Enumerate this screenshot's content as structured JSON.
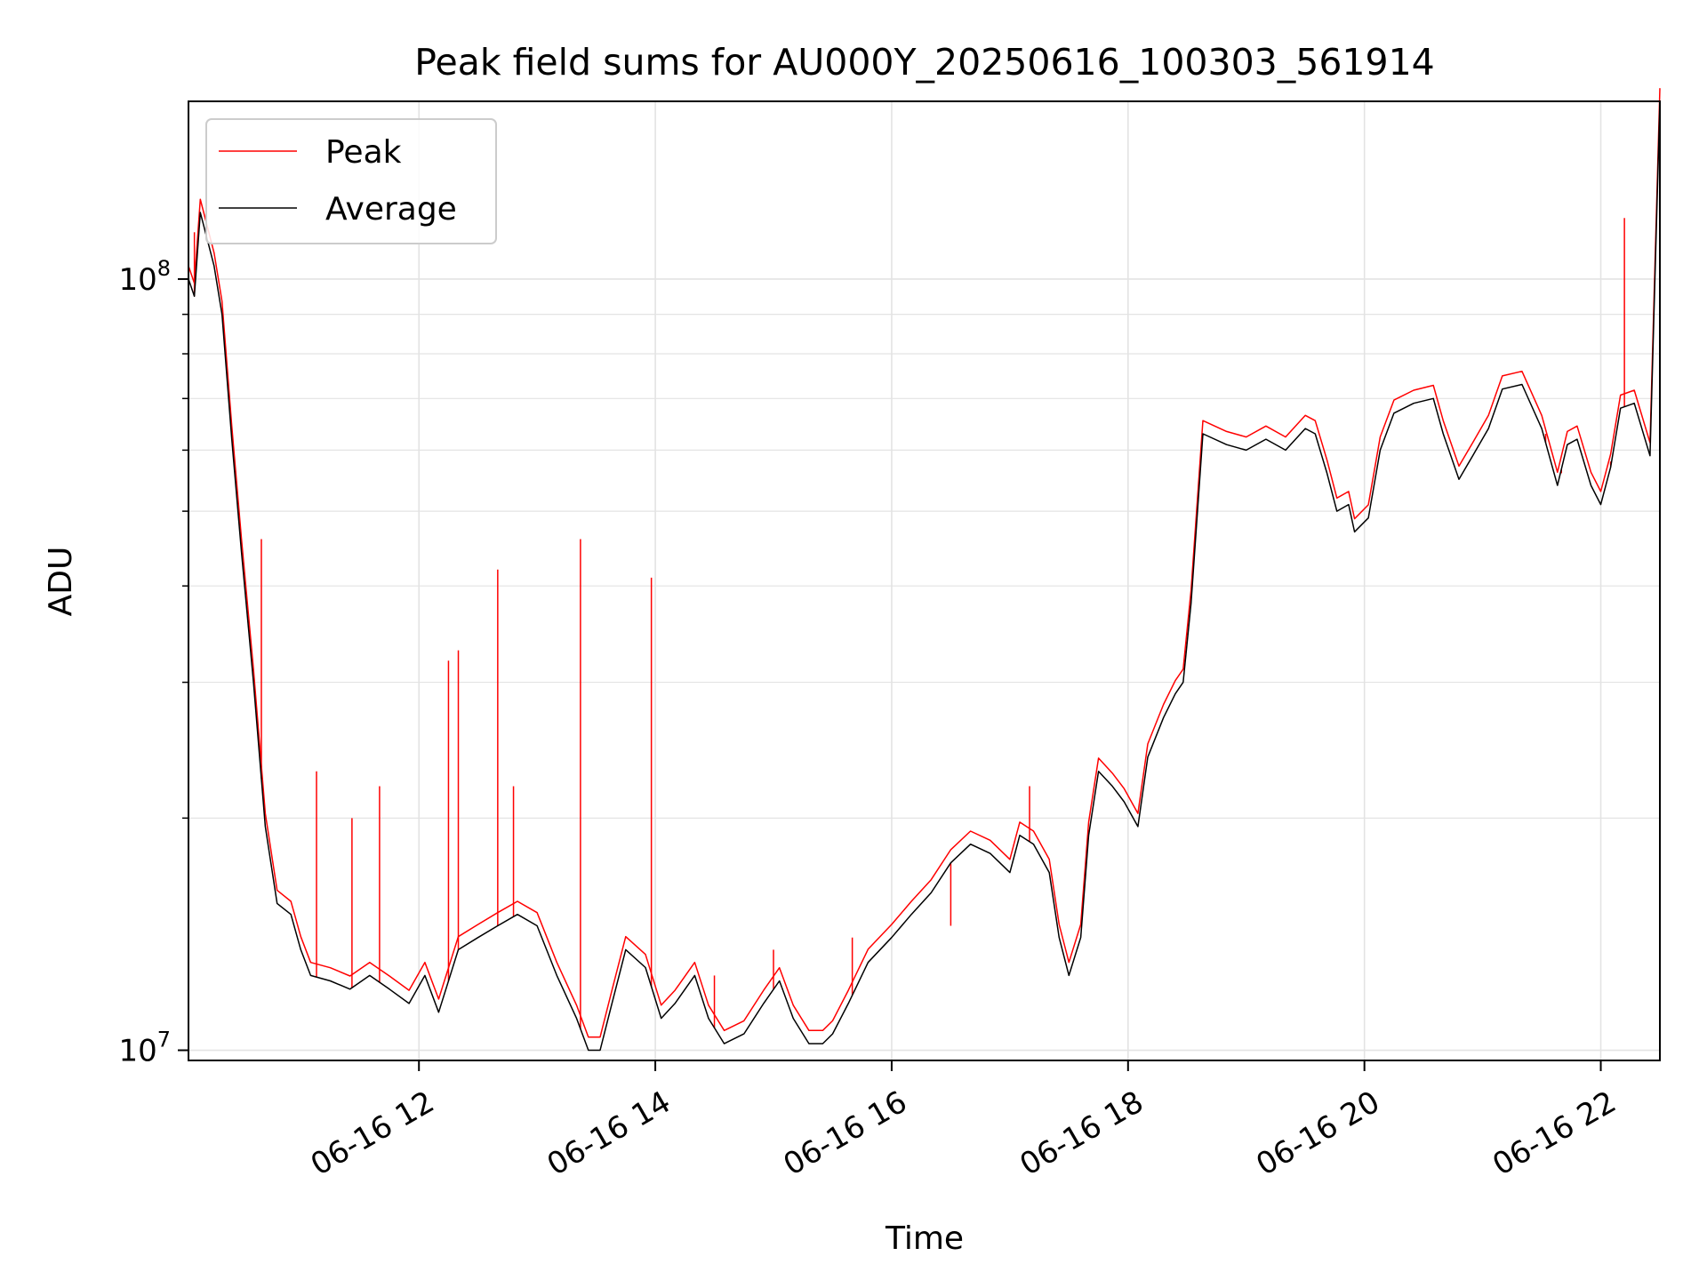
{
  "chart_data": {
    "type": "line",
    "title": "Peak field sums for AU000Y_20250616_100303_561914",
    "xlabel": "Time",
    "ylabel": "ADU",
    "y_scale": "log",
    "x_range": [
      "06-16 10:03",
      "06-16 22:30"
    ],
    "ylim": [
      9700000,
      170000000
    ],
    "x_ticks": [
      {
        "x": "06-16 12:00",
        "label": "06-16 12"
      },
      {
        "x": "06-16 14:00",
        "label": "06-16 14"
      },
      {
        "x": "06-16 16:00",
        "label": "06-16 16"
      },
      {
        "x": "06-16 18:00",
        "label": "06-16 18"
      },
      {
        "x": "06-16 20:00",
        "label": "06-16 20"
      },
      {
        "x": "06-16 22:00",
        "label": "06-16 22"
      }
    ],
    "y_ticks": [
      {
        "value": 10000000,
        "base": "10",
        "exp": "7"
      },
      {
        "value": 100000000,
        "base": "10",
        "exp": "8"
      }
    ],
    "grid": true,
    "legend_position": "upper-left",
    "colors": {
      "peak": "#ff0000",
      "average": "#000000",
      "grid": "#e3e3e3"
    },
    "series": [
      {
        "name": "Average",
        "color": "#000000",
        "points": [
          [
            "06-16 10:03",
            100000000
          ],
          [
            "06-16 10:06",
            95000000
          ],
          [
            "06-16 10:09",
            122000000
          ],
          [
            "06-16 10:12",
            114000000
          ],
          [
            "06-16 10:16",
            104000000
          ],
          [
            "06-16 10:20",
            90000000
          ],
          [
            "06-16 10:25",
            62000000
          ],
          [
            "06-16 10:30",
            44000000
          ],
          [
            "06-16 10:36",
            30000000
          ],
          [
            "06-16 10:42",
            19500000
          ],
          [
            "06-16 10:48",
            15500000
          ],
          [
            "06-16 10:55",
            15000000
          ],
          [
            "06-16 11:00",
            13500000
          ],
          [
            "06-16 11:05",
            12500000
          ],
          [
            "06-16 11:15",
            12300000
          ],
          [
            "06-16 11:25",
            12000000
          ],
          [
            "06-16 11:35",
            12500000
          ],
          [
            "06-16 11:45",
            12000000
          ],
          [
            "06-16 11:55",
            11500000
          ],
          [
            "06-16 12:03",
            12500000
          ],
          [
            "06-16 12:10",
            11200000
          ],
          [
            "06-16 12:20",
            13500000
          ],
          [
            "06-16 12:30",
            14000000
          ],
          [
            "06-16 12:40",
            14500000
          ],
          [
            "06-16 12:50",
            15000000
          ],
          [
            "06-16 13:00",
            14500000
          ],
          [
            "06-16 13:10",
            12500000
          ],
          [
            "06-16 13:20",
            11000000
          ],
          [
            "06-16 13:26",
            10000000
          ],
          [
            "06-16 13:32",
            10000000
          ],
          [
            "06-16 13:38",
            11500000
          ],
          [
            "06-16 13:45",
            13500000
          ],
          [
            "06-16 13:55",
            12800000
          ],
          [
            "06-16 14:03",
            11000000
          ],
          [
            "06-16 14:10",
            11500000
          ],
          [
            "06-16 14:20",
            12500000
          ],
          [
            "06-16 14:27",
            11000000
          ],
          [
            "06-16 14:35",
            10200000
          ],
          [
            "06-16 14:45",
            10500000
          ],
          [
            "06-16 14:55",
            11500000
          ],
          [
            "06-16 15:03",
            12300000
          ],
          [
            "06-16 15:10",
            11000000
          ],
          [
            "06-16 15:18",
            10200000
          ],
          [
            "06-16 15:25",
            10200000
          ],
          [
            "06-16 15:30",
            10500000
          ],
          [
            "06-16 15:38",
            11500000
          ],
          [
            "06-16 15:48",
            13000000
          ],
          [
            "06-16 16:00",
            14000000
          ],
          [
            "06-16 16:10",
            15000000
          ],
          [
            "06-16 16:20",
            16000000
          ],
          [
            "06-16 16:30",
            17500000
          ],
          [
            "06-16 16:40",
            18500000
          ],
          [
            "06-16 16:50",
            18000000
          ],
          [
            "06-16 17:00",
            17000000
          ],
          [
            "06-16 17:05",
            19000000
          ],
          [
            "06-16 17:12",
            18500000
          ],
          [
            "06-16 17:20",
            17000000
          ],
          [
            "06-16 17:25",
            14000000
          ],
          [
            "06-16 17:30",
            12500000
          ],
          [
            "06-16 17:36",
            14000000
          ],
          [
            "06-16 17:40",
            19000000
          ],
          [
            "06-16 17:45",
            23000000
          ],
          [
            "06-16 17:52",
            22000000
          ],
          [
            "06-16 17:58",
            21000000
          ],
          [
            "06-16 18:05",
            19500000
          ],
          [
            "06-16 18:10",
            24000000
          ],
          [
            "06-16 18:18",
            27000000
          ],
          [
            "06-16 18:24",
            29000000
          ],
          [
            "06-16 18:28",
            30000000
          ],
          [
            "06-16 18:32",
            38000000
          ],
          [
            "06-16 18:38",
            63000000
          ],
          [
            "06-16 18:50",
            61000000
          ],
          [
            "06-16 19:00",
            60000000
          ],
          [
            "06-16 19:10",
            62000000
          ],
          [
            "06-16 19:20",
            60000000
          ],
          [
            "06-16 19:30",
            64000000
          ],
          [
            "06-16 19:35",
            63000000
          ],
          [
            "06-16 19:41",
            56000000
          ],
          [
            "06-16 19:46",
            50000000
          ],
          [
            "06-16 19:52",
            51000000
          ],
          [
            "06-16 19:55",
            47000000
          ],
          [
            "06-16 20:02",
            49000000
          ],
          [
            "06-16 20:08",
            60000000
          ],
          [
            "06-16 20:15",
            67000000
          ],
          [
            "06-16 20:25",
            69000000
          ],
          [
            "06-16 20:35",
            70000000
          ],
          [
            "06-16 20:40",
            63000000
          ],
          [
            "06-16 20:48",
            55000000
          ],
          [
            "06-16 20:55",
            59000000
          ],
          [
            "06-16 21:03",
            64000000
          ],
          [
            "06-16 21:10",
            72000000
          ],
          [
            "06-16 21:20",
            73000000
          ],
          [
            "06-16 21:30",
            64000000
          ],
          [
            "06-16 21:38",
            54000000
          ],
          [
            "06-16 21:43",
            61000000
          ],
          [
            "06-16 21:48",
            62000000
          ],
          [
            "06-16 21:55",
            54000000
          ],
          [
            "06-16 22:00",
            51000000
          ],
          [
            "06-16 22:05",
            57000000
          ],
          [
            "06-16 22:10",
            68000000
          ],
          [
            "06-16 22:17",
            69000000
          ],
          [
            "06-16 22:25",
            59000000
          ],
          [
            "06-16 22:30",
            170000000
          ]
        ]
      },
      {
        "name": "Peak",
        "color": "#ff0000",
        "spikes": [
          [
            "06-16 10:06",
            115000000
          ],
          [
            "06-16 10:40",
            46000000
          ],
          [
            "06-16 11:08",
            23000000
          ],
          [
            "06-16 11:26",
            20000000
          ],
          [
            "06-16 11:40",
            22000000
          ],
          [
            "06-16 12:15",
            32000000
          ],
          [
            "06-16 12:20",
            33000000
          ],
          [
            "06-16 12:40",
            42000000
          ],
          [
            "06-16 12:48",
            22000000
          ],
          [
            "06-16 13:22",
            46000000
          ],
          [
            "06-16 13:58",
            41000000
          ],
          [
            "06-16 14:30",
            12500000
          ],
          [
            "06-16 15:00",
            13500000
          ],
          [
            "06-16 15:40",
            14000000
          ],
          [
            "06-16 16:30",
            14500000
          ],
          [
            "06-16 17:10",
            22000000
          ],
          [
            "06-16 21:32",
            63000000
          ],
          [
            "06-16 21:40",
            56000000
          ],
          [
            "06-16 22:05",
            58000000
          ],
          [
            "06-16 22:12",
            120000000
          ]
        ]
      }
    ]
  }
}
